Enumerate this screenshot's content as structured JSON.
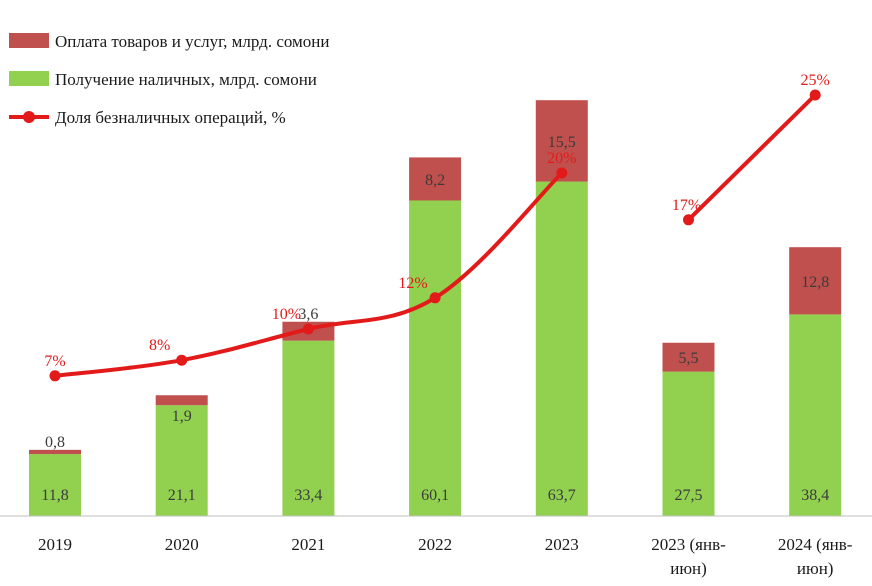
{
  "chart_data": {
    "type": "bar",
    "stacked": true,
    "categories": [
      "2019",
      "2020",
      "2021",
      "2022",
      "2023",
      "2023 (янв-июн)",
      "2024 (янв-июн)"
    ],
    "category_lines": [
      [
        "2019"
      ],
      [
        "2020"
      ],
      [
        "2021"
      ],
      [
        "2022"
      ],
      [
        "2023"
      ],
      [
        "2023 (янв-",
        "июн)"
      ],
      [
        "2024 (янв-",
        "июн)"
      ]
    ],
    "series": [
      {
        "name": "Получение наличных, млрд. сомони",
        "kind": "bar",
        "color": "#92d050",
        "values": [
          11.8,
          21.1,
          33.4,
          60.1,
          63.7,
          27.5,
          38.4
        ],
        "labels": [
          "11,8",
          "21,1",
          "33,4",
          "60,1",
          "63,7",
          "27,5",
          "38,4"
        ]
      },
      {
        "name": "Оплата товаров и услуг, млрд. сомони",
        "kind": "bar",
        "color": "#c0504d",
        "values": [
          0.8,
          1.9,
          3.6,
          8.2,
          15.5,
          5.5,
          12.8
        ],
        "labels": [
          "0,8",
          "1,9",
          "3,6",
          "8,2",
          "15,5",
          "5,5",
          "12,8"
        ]
      },
      {
        "name": "Доля безналичных операций, %",
        "kind": "line",
        "color": "#e21a1a",
        "values": [
          7,
          8,
          10,
          12,
          20,
          17,
          25
        ],
        "labels": [
          "7%",
          "8%",
          "10%",
          "12%",
          "20%",
          "17%",
          "25%"
        ],
        "segments": [
          [
            0,
            4
          ],
          [
            5,
            6
          ]
        ]
      }
    ],
    "legend": {
      "position": "top-left",
      "items": [
        {
          "label": "Оплата товаров и услуг, млрд. сомони",
          "color": "#c0504d",
          "marker": "bar"
        },
        {
          "label": "Получение наличных, млрд. сомони",
          "color": "#92d050",
          "marker": "bar"
        },
        {
          "label": "Доля безналичных операций,  %",
          "color": "#e21a1a",
          "marker": "line"
        }
      ]
    },
    "grid": false
  }
}
